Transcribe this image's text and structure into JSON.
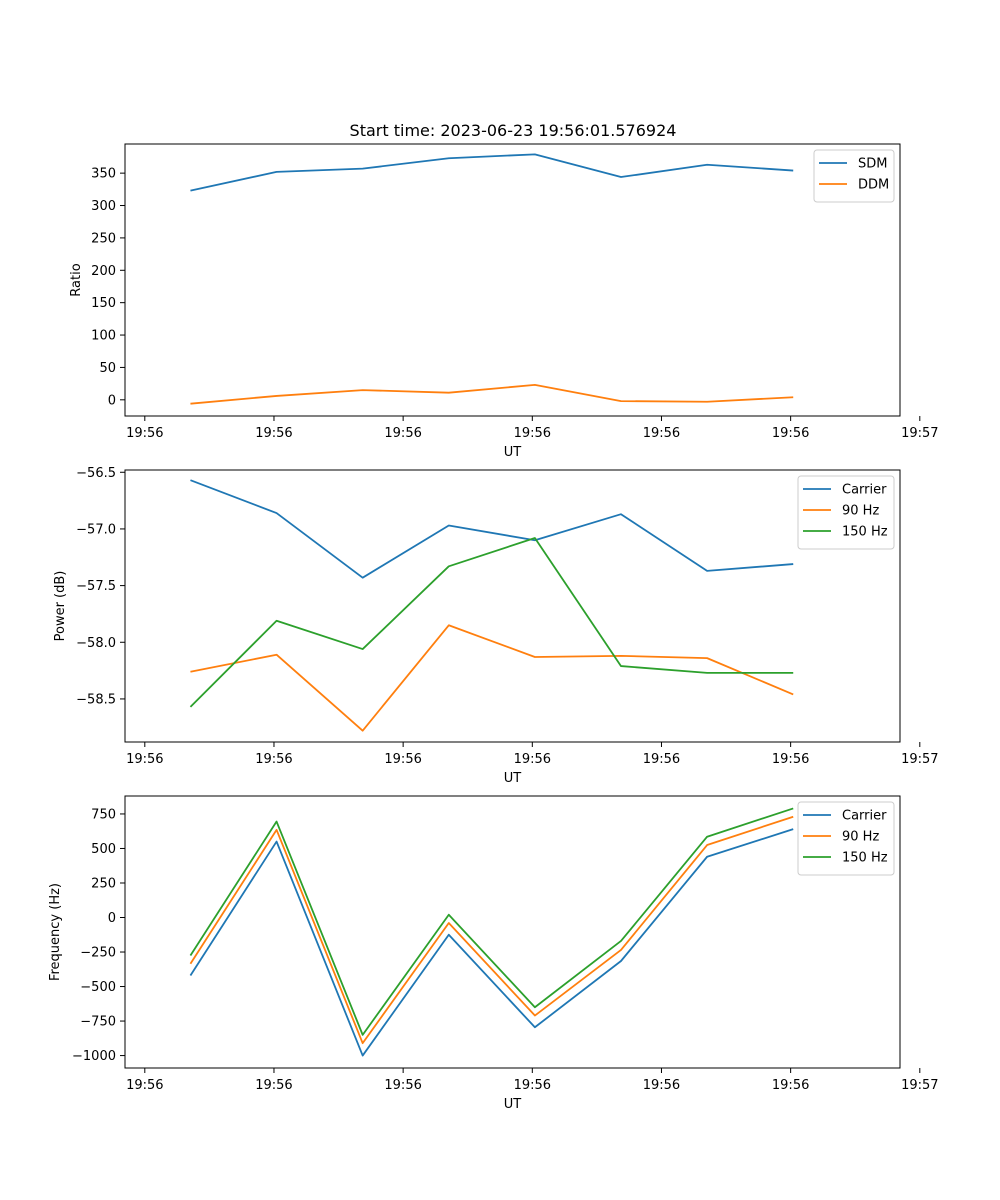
{
  "figure": {
    "title": "Start time: 2023-06-23 19:56:01.576924"
  },
  "chart_data": [
    {
      "type": "line",
      "title": "Start time: 2023-06-23 19:56:01.576924",
      "xlabel": "UT",
      "ylabel": "Ratio",
      "x": [
        1,
        2,
        3,
        4,
        5,
        6,
        7,
        8
      ],
      "xlim": [
        0.24,
        9.24
      ],
      "ylim": [
        -25,
        395
      ],
      "xticks": [
        0.47,
        1.97,
        3.47,
        4.97,
        6.47,
        7.97,
        9.47
      ],
      "xtick_labels": [
        "19:56",
        "19:56",
        "19:56",
        "19:56",
        "19:56",
        "19:56",
        "19:57"
      ],
      "yticks": [
        0,
        50,
        100,
        150,
        200,
        250,
        300,
        350
      ],
      "ytick_labels": [
        "0",
        "50",
        "100",
        "150",
        "200",
        "250",
        "300",
        "350"
      ],
      "legend_position": "upper-right",
      "series": [
        {
          "name": "SDM",
          "color": "#1f77b4",
          "values": [
            323,
            352,
            357,
            373,
            379,
            344,
            363,
            354
          ]
        },
        {
          "name": "DDM",
          "color": "#ff7f0e",
          "values": [
            -6,
            6,
            15,
            11,
            23,
            -2,
            -3,
            4
          ]
        }
      ],
      "grid": false
    },
    {
      "type": "line",
      "xlabel": "UT",
      "ylabel": "Power (dB)",
      "x": [
        1,
        2,
        3,
        4,
        5,
        6,
        7,
        8
      ],
      "xlim": [
        0.24,
        9.24
      ],
      "ylim": [
        -58.88,
        -56.48
      ],
      "xticks": [
        0.47,
        1.97,
        3.47,
        4.97,
        6.47,
        7.97,
        9.47
      ],
      "xtick_labels": [
        "19:56",
        "19:56",
        "19:56",
        "19:56",
        "19:56",
        "19:56",
        "19:57"
      ],
      "yticks": [
        -58.5,
        -58.0,
        -57.5,
        -57.0,
        -56.5
      ],
      "ytick_labels": [
        "−58.5",
        "−58.0",
        "−57.5",
        "−57.0",
        "−56.5"
      ],
      "legend_position": "upper-right",
      "series": [
        {
          "name": "Carrier",
          "color": "#1f77b4",
          "values": [
            -56.57,
            -56.86,
            -57.43,
            -56.97,
            -57.1,
            -56.87,
            -57.37,
            -57.31
          ]
        },
        {
          "name": "90 Hz",
          "color": "#ff7f0e",
          "values": [
            -58.26,
            -58.11,
            -58.78,
            -57.85,
            -58.13,
            -58.12,
            -58.14,
            -58.46
          ]
        },
        {
          "name": "150 Hz",
          "color": "#2ca02c",
          "values": [
            -58.57,
            -57.81,
            -58.06,
            -57.33,
            -57.08,
            -58.21,
            -58.27,
            -58.27
          ]
        }
      ],
      "grid": false
    },
    {
      "type": "line",
      "xlabel": "UT",
      "ylabel": "Frequency (Hz)",
      "x": [
        1,
        2,
        3,
        4,
        5,
        6,
        7,
        8
      ],
      "xlim": [
        0.24,
        9.24
      ],
      "ylim": [
        -1090,
        880
      ],
      "xticks": [
        0.47,
        1.97,
        3.47,
        4.97,
        6.47,
        7.97,
        9.47
      ],
      "xtick_labels": [
        "19:56",
        "19:56",
        "19:56",
        "19:56",
        "19:56",
        "19:56",
        "19:57"
      ],
      "yticks": [
        -1000,
        -750,
        -500,
        -250,
        0,
        250,
        500,
        750
      ],
      "ytick_labels": [
        "−1000",
        "−750",
        "−500",
        "−250",
        "0",
        "250",
        "500",
        "750"
      ],
      "legend_position": "upper-right",
      "series": [
        {
          "name": "Carrier",
          "color": "#1f77b4",
          "values": [
            -420,
            550,
            -1000,
            -125,
            -795,
            -315,
            440,
            640
          ]
        },
        {
          "name": "90 Hz",
          "color": "#ff7f0e",
          "values": [
            -335,
            635,
            -910,
            -40,
            -710,
            -235,
            525,
            730
          ]
        },
        {
          "name": "150 Hz",
          "color": "#2ca02c",
          "values": [
            -275,
            695,
            -850,
            20,
            -650,
            -170,
            585,
            790
          ]
        }
      ],
      "grid": false
    }
  ]
}
